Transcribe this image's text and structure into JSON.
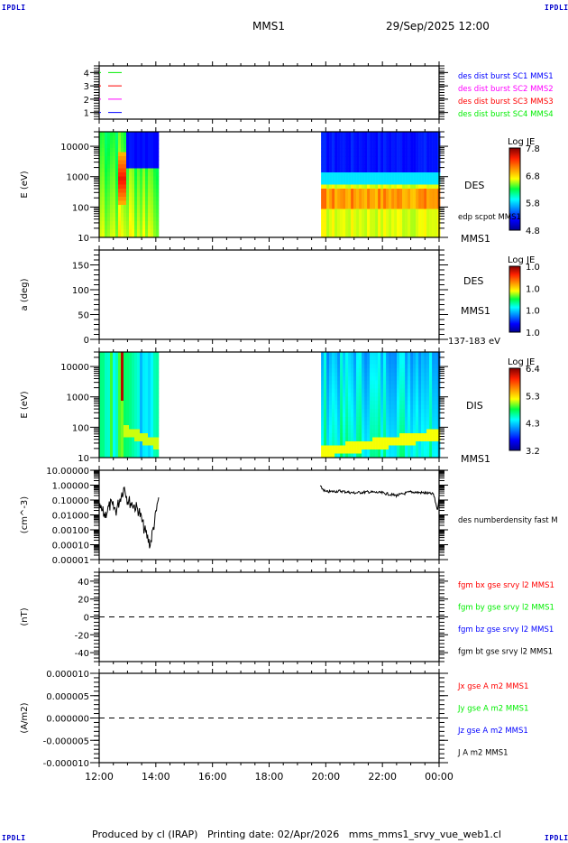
{
  "header": {
    "corner_label": "IPDLI",
    "spacecraft": "MMS1",
    "datetime": "29/Sep/2025 12:00"
  },
  "footer": {
    "produced_by": "Produced by cl (IRAP)",
    "printing_date": "Printing date: 02/Apr/2026",
    "script_name": "mms_mms1_srvy_vue_web1.cl"
  },
  "colors": {
    "red": "#ff0000",
    "green": "#00ee00",
    "blue": "#0000ff",
    "magenta": "#ff00ff",
    "black": "#000000",
    "corner": "#0000cc"
  },
  "chart_data": [
    {
      "id": "burst",
      "type": "line",
      "title": "",
      "ylabel": "",
      "ylim": [
        0.5,
        4.5
      ],
      "yticks": [
        "1",
        "2",
        "3",
        "4"
      ],
      "series": [
        {
          "name": "des dist burst SC1 MMS1",
          "color": "#0000ff",
          "level": 1
        },
        {
          "name": "des dist burst SC2 MMS2",
          "color": "#ff00ff",
          "level": 2
        },
        {
          "name": "des dist burst SC3 MMS3",
          "color": "#ff0000",
          "level": 3
        },
        {
          "name": "des dist burst SC4 MMS4",
          "color": "#00ee00",
          "level": 4
        }
      ],
      "legend_placement": "right"
    },
    {
      "id": "des_energy",
      "type": "heatmap",
      "ylabel": "E (eV)",
      "yscale": "log",
      "ylim": [
        10,
        30000
      ],
      "yticks": [
        "10",
        "100",
        "1000",
        "10000"
      ],
      "side_labels": [
        "DES",
        "edp scpot MMS1",
        "MMS1"
      ],
      "colorbar": {
        "title": "Log JE",
        "ticks": [
          "4.8",
          "5.8",
          "6.8",
          "7.8"
        ],
        "range": [
          4.8,
          7.8
        ]
      },
      "data_intervals": [
        [
          "12:00",
          "14:05"
        ],
        [
          "19:50",
          "00:00"
        ]
      ]
    },
    {
      "id": "des_pitch",
      "type": "heatmap",
      "ylabel": "a (deg)",
      "ylim": [
        0,
        180
      ],
      "yticks": [
        "0",
        "50",
        "100",
        "150"
      ],
      "side_labels": [
        "DES",
        "MMS1",
        "137-183 eV"
      ],
      "colorbar": {
        "title": "Log JE",
        "ticks": [
          "1.0",
          "1.0",
          "1.0",
          "1.0"
        ],
        "range": [
          1.0,
          1.0
        ]
      },
      "data_intervals": []
    },
    {
      "id": "dis_energy",
      "type": "heatmap",
      "ylabel": "E (eV)",
      "yscale": "log",
      "ylim": [
        10,
        30000
      ],
      "yticks": [
        "10",
        "100",
        "1000",
        "10000"
      ],
      "side_labels": [
        "DIS",
        "MMS1"
      ],
      "colorbar": {
        "title": "Log JE",
        "ticks": [
          "3.2",
          "4.3",
          "5.3",
          "6.4"
        ],
        "range": [
          3.2,
          6.4
        ]
      },
      "data_intervals": [
        [
          "12:00",
          "14:05"
        ],
        [
          "19:50",
          "00:00"
        ]
      ]
    },
    {
      "id": "density",
      "type": "line",
      "ylabel": "(cm^-3)",
      "yscale": "log",
      "ylim": [
        1e-05,
        10
      ],
      "yticks": [
        "0.00001",
        "0.00010",
        "0.00100",
        "0.01000",
        "0.10000",
        "1.00000",
        "10.00000"
      ],
      "series": [
        {
          "name": "des numberdensity fast M",
          "color": "#000000",
          "x_hours": [
            0.0,
            0.2,
            0.4,
            0.6,
            0.8,
            0.9,
            1.0,
            1.2,
            1.4,
            1.6,
            1.8,
            2.0,
            2.1,
            7.8,
            8.0,
            8.5,
            9.0,
            9.5,
            10.0,
            10.5,
            11.0,
            11.5,
            11.8,
            11.95,
            12.0
          ],
          "values": [
            0.03,
            0.01,
            0.05,
            0.02,
            0.3,
            0.8,
            0.1,
            0.05,
            0.02,
            0.001,
            0.0001,
            0.01,
            0.15,
            0.8,
            0.35,
            0.4,
            0.3,
            0.35,
            0.3,
            0.2,
            0.35,
            0.3,
            0.25,
            0.02,
            0.2
          ]
        }
      ]
    },
    {
      "id": "bfield",
      "type": "line",
      "ylabel": "(nT)",
      "ylim": [
        -50,
        50
      ],
      "yticks": [
        "-40",
        "-20",
        "0",
        "20",
        "40"
      ],
      "zero_line": true,
      "series": [
        {
          "name": "fgm bx gse srvy l2 MMS1",
          "color": "#ff0000"
        },
        {
          "name": "fgm by gse srvy l2 MMS1",
          "color": "#00ee00"
        },
        {
          "name": "fgm bz gse srvy l2 MMS1",
          "color": "#0000ff"
        },
        {
          "name": "fgm bt gse srvy l2 MMS1",
          "color": "#000000"
        }
      ]
    },
    {
      "id": "current",
      "type": "line",
      "ylabel": "(A/m2)",
      "ylim": [
        -1e-05,
        1e-05
      ],
      "yticks": [
        "-0.000010",
        "-0.000005",
        "0.000000",
        "0.000005",
        "0.000010"
      ],
      "zero_line": true,
      "series": [
        {
          "name": "Jx gse A m2 MMS1",
          "color": "#ff0000"
        },
        {
          "name": "Jy gse A m2 MMS1",
          "color": "#00ee00"
        },
        {
          "name": "Jz gse A m2 MMS1",
          "color": "#0000ff"
        },
        {
          "name": "J A m2 MMS1",
          "color": "#000000"
        }
      ]
    }
  ],
  "xaxis": {
    "ticks": [
      "12:00",
      "14:00",
      "16:00",
      "18:00",
      "20:00",
      "22:00",
      "00:00"
    ],
    "range_hours": [
      0,
      12
    ]
  }
}
